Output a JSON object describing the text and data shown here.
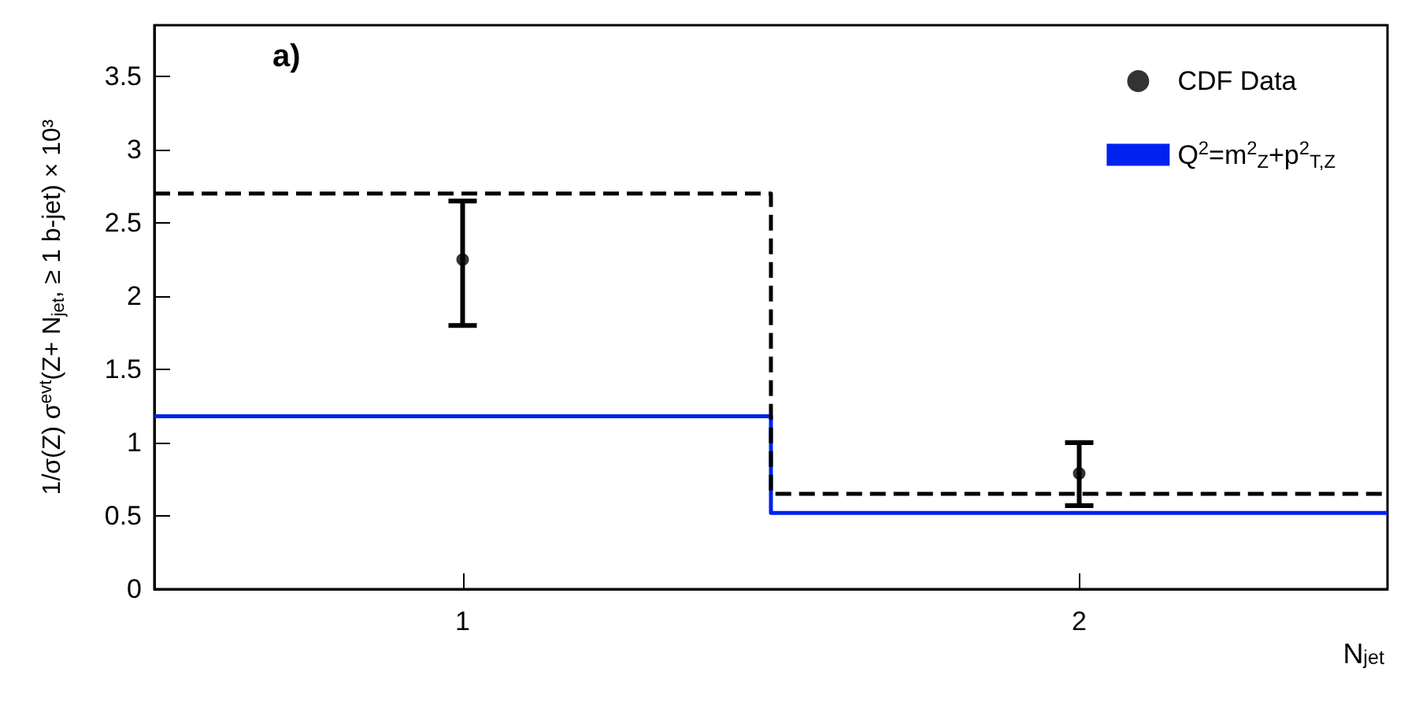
{
  "chart_data": {
    "type": "step",
    "xlabel": "N$_{jet}$",
    "ylabel": "1/σ(Z) σ$^{evt}$(Z+ N$_{jet}$, ≥ 1 b-jet) × 10³",
    "annotations": [
      "a)"
    ],
    "xlim": [
      0.5,
      2.5
    ],
    "xticks": [
      1,
      2
    ],
    "ylim": [
      0,
      3.85
    ],
    "yticks": [
      0,
      0.5,
      1,
      1.5,
      2,
      2.5,
      3,
      3.5
    ],
    "series": [
      {
        "name": "CDF Data",
        "type": "scatter",
        "color": "#000000",
        "x": [
          1,
          2
        ],
        "values": [
          2.25,
          0.79
        ],
        "errors": [
          [
            1.8,
            2.65
          ],
          [
            0.57,
            1.0
          ]
        ],
        "marker": "circle"
      },
      {
        "name": "Q$^{2}$=m$^{2}$$_{Z}$+p$^{2}$$_{T,Z}$",
        "color": "#0022ee",
        "x": [
          0.5,
          1.5,
          2.5
        ],
        "values": [
          1.18,
          0.52,
          0.52
        ],
        "line_style": "solid"
      },
      {
        "color": "#000000",
        "x": [
          0.5,
          1.5,
          2.5
        ],
        "values": [
          2.7,
          0.65,
          0.65
        ],
        "line_style": "dashed"
      }
    ],
    "grid": false,
    "legend": "top right"
  }
}
